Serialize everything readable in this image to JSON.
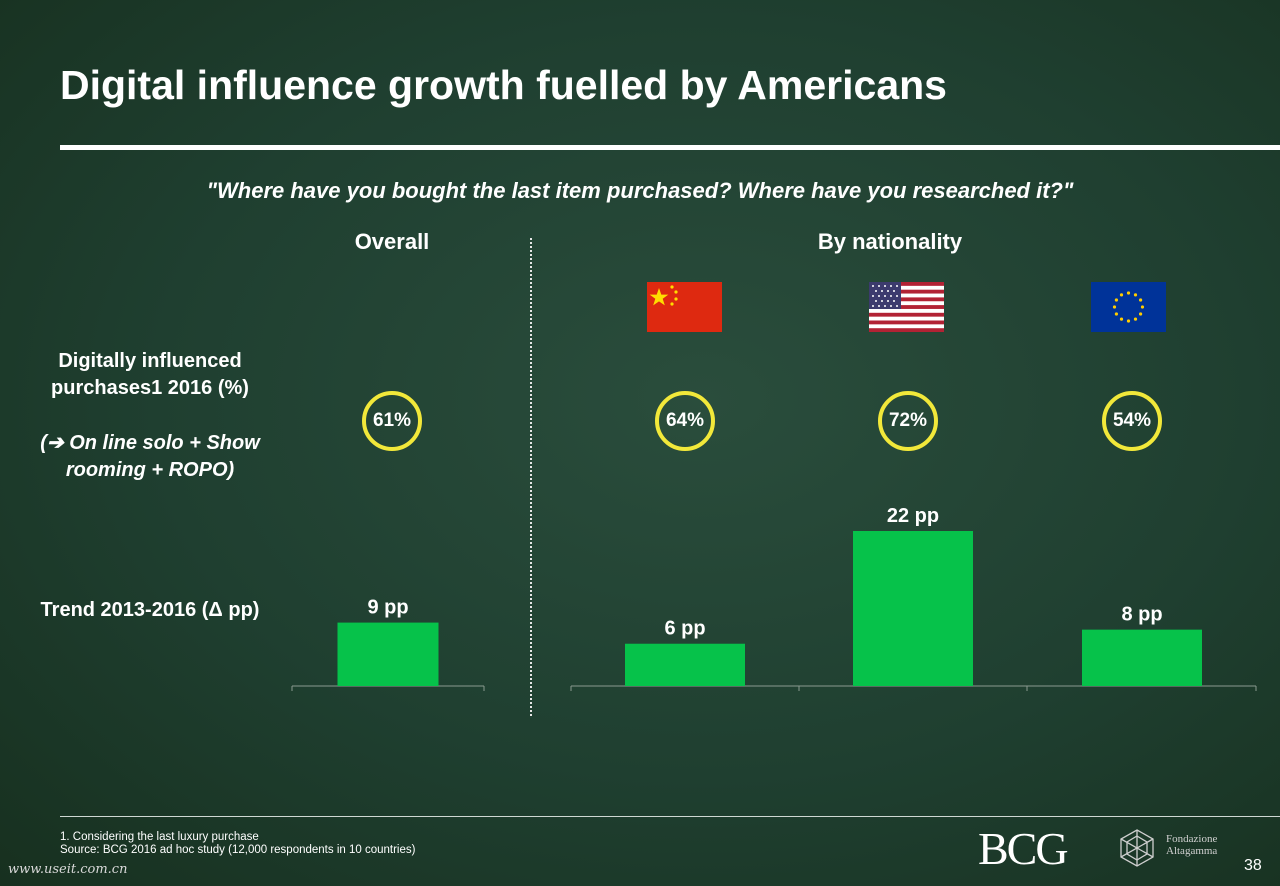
{
  "title": "Digital influence growth fuelled by Americans",
  "question": "\"Where have you bought the last item purchased? Where have you researched it?\"",
  "headers": {
    "overall": "Overall",
    "by_nationality": "By nationality"
  },
  "row_labels": {
    "digital": "Digitally influenced purchases1 2016 (%)",
    "digital_note": "(➔ On line solo + Show rooming + ROPO)",
    "trend": "Trend 2013-2016 (Δ pp)"
  },
  "flags": [
    {
      "name": "china-flag-icon",
      "color": "#de2910"
    },
    {
      "name": "usa-flag-icon",
      "color": "#b22234"
    },
    {
      "name": "eu-flag-icon",
      "color": "#003399"
    }
  ],
  "percentages": [
    "61%",
    "64%",
    "72%",
    "54%"
  ],
  "colors": {
    "bar": "#06c24a",
    "circle": "#f2e83a",
    "background": "#1f3f30"
  },
  "chart_data": [
    {
      "type": "bar",
      "title": "",
      "categories": [
        "Overall"
      ],
      "values": [
        9
      ],
      "labels": [
        "9 pp"
      ],
      "ylim": [
        0,
        22
      ]
    },
    {
      "type": "bar",
      "title": "",
      "categories": [
        "China",
        "USA",
        "Europe"
      ],
      "values": [
        6,
        22,
        8
      ],
      "labels": [
        "6 pp",
        "22 pp",
        "8 pp"
      ],
      "ylim": [
        0,
        22
      ]
    }
  ],
  "footnote": {
    "line1": "1. Considering the last luxury purchase",
    "line2": "Source: BCG 2016 ad hoc study (12,000 respondents in 10 countries)"
  },
  "logo_bcg": "BCG",
  "logo_fondazione": "Fondazione Altagamma",
  "page_number": "38",
  "watermark": "www.useit.com.cn"
}
